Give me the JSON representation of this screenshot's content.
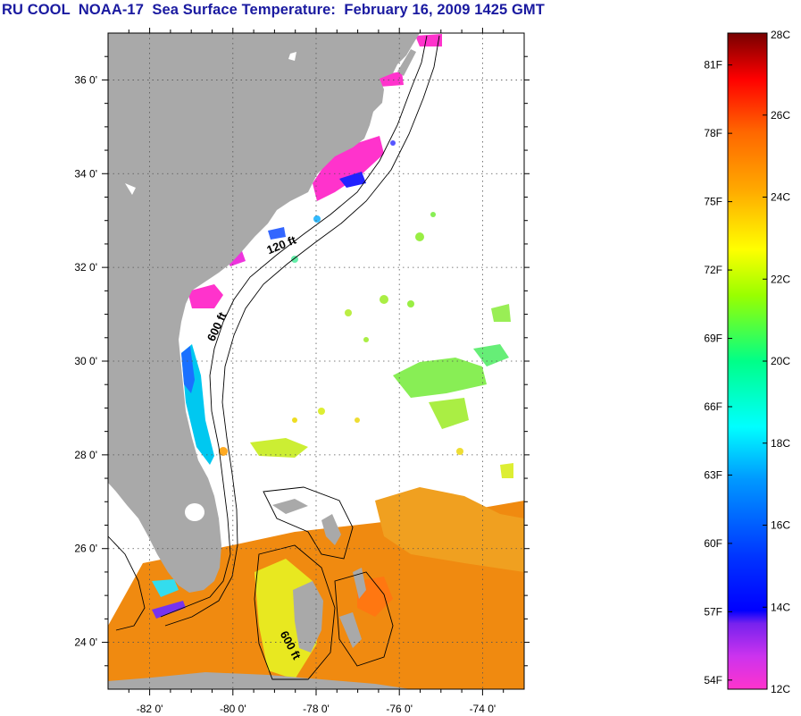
{
  "title": "RU COOL  NOAA-17  Sea Surface Temperature:  February 16, 2009 1425 GMT",
  "map": {
    "lon_range": [
      -83,
      -73
    ],
    "lat_range": [
      23,
      37
    ],
    "lon_ticks": [
      {
        "value": -82,
        "label": "-82 0'"
      },
      {
        "value": -80,
        "label": "-80 0'"
      },
      {
        "value": -78,
        "label": "-78 0'"
      },
      {
        "value": -76,
        "label": "-76 0'"
      },
      {
        "value": -74,
        "label": "-74 0'"
      }
    ],
    "lat_ticks": [
      {
        "value": 36,
        "label": "36 0'"
      },
      {
        "value": 34,
        "label": "34 0'"
      },
      {
        "value": 32,
        "label": "32 0'"
      },
      {
        "value": 30,
        "label": "30 0'"
      },
      {
        "value": 28,
        "label": "28 0'"
      },
      {
        "value": 26,
        "label": "26 0'"
      },
      {
        "value": 24,
        "label": "24 0'"
      }
    ],
    "contour_labels": [
      {
        "text": "120 ft",
        "lon": -78.8,
        "lat": 32.4,
        "rotation": -22
      },
      {
        "text": "600 ft",
        "lon": -80.3,
        "lat": 30.7,
        "rotation": -65
      },
      {
        "text": "600 ft",
        "lon": -78.7,
        "lat": 23.9,
        "rotation": 62
      }
    ],
    "colors": {
      "land": "#a9a9a9",
      "ocean": "#ffffff",
      "grid": "#555555"
    }
  },
  "colorbar": {
    "celsius_range": [
      12,
      28
    ],
    "celsius_labels": [
      "28C",
      "26C",
      "24C",
      "22C",
      "20C",
      "18C",
      "16C",
      "14C",
      "12C"
    ],
    "fahrenheit_labels": [
      "81F",
      "78F",
      "75F",
      "72F",
      "69F",
      "66F",
      "63F",
      "60F",
      "57F",
      "54F"
    ],
    "fahrenheit_values": [
      81,
      78,
      75,
      72,
      69,
      66,
      63,
      60,
      57,
      54
    ],
    "stops": [
      "#ff33cc",
      "#9933ff",
      "#0000ff",
      "#0088ff",
      "#00ffff",
      "#00ff88",
      "#88ff00",
      "#ffff00",
      "#ffaa00",
      "#ff6600",
      "#ff0000",
      "#770000"
    ]
  }
}
